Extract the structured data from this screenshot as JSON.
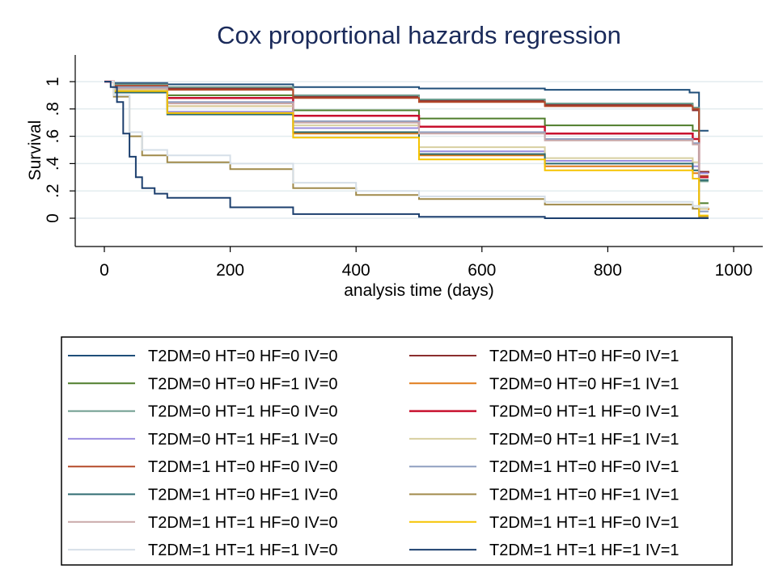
{
  "chart_data": {
    "type": "line",
    "step": true,
    "title": "Cox proportional hazards regression",
    "xlabel": "analysis time (days)",
    "ylabel": "Survival",
    "xlim": [
      0,
      1000
    ],
    "ylim": [
      0,
      1
    ],
    "xticks": [
      0,
      200,
      400,
      600,
      800,
      1000
    ],
    "yticks": [
      0,
      0.2,
      0.4,
      0.6,
      0.8,
      1
    ],
    "ytick_labels": [
      "0",
      ".2",
      ".4",
      ".6",
      ".8",
      "1"
    ],
    "grid": true,
    "legend_position": "bottom",
    "legend_columns": 2,
    "series": [
      {
        "name": "T2DM=0 HT=0 HF=0 IV=0",
        "color": "#1f4e79",
        "width": 2,
        "points": [
          [
            0,
            1
          ],
          [
            15,
            0.99
          ],
          [
            100,
            0.98
          ],
          [
            300,
            0.96
          ],
          [
            500,
            0.95
          ],
          [
            700,
            0.94
          ],
          [
            930,
            0.92
          ],
          [
            945,
            0.64
          ],
          [
            960,
            0.64
          ]
        ]
      },
      {
        "name": "T2DM=0 HT=0 HF=0 IV=1",
        "color": "#8b2e2e",
        "width": 2,
        "points": [
          [
            0,
            1
          ],
          [
            15,
            0.98
          ],
          [
            100,
            0.95
          ],
          [
            300,
            0.89
          ],
          [
            500,
            0.86
          ],
          [
            700,
            0.83
          ],
          [
            935,
            0.79
          ],
          [
            945,
            0.34
          ],
          [
            960,
            0.33
          ]
        ]
      },
      {
        "name": "T2DM=0 HT=0 HF=1 IV=0",
        "color": "#4f7d2b",
        "width": 2,
        "points": [
          [
            0,
            1
          ],
          [
            15,
            0.96
          ],
          [
            100,
            0.9
          ],
          [
            300,
            0.79
          ],
          [
            500,
            0.73
          ],
          [
            700,
            0.68
          ],
          [
            935,
            0.64
          ],
          [
            945,
            0.11
          ],
          [
            960,
            0.11
          ]
        ]
      },
      {
        "name": "T2DM=0 HT=0 HF=1 IV=1",
        "color": "#e07b1a",
        "width": 2,
        "points": [
          [
            0,
            1
          ],
          [
            15,
            0.94
          ],
          [
            100,
            0.82
          ],
          [
            300,
            0.62
          ],
          [
            500,
            0.46
          ],
          [
            700,
            0.38
          ],
          [
            935,
            0.33
          ],
          [
            945,
            0.07
          ],
          [
            960,
            0.06
          ]
        ]
      },
      {
        "name": "T2DM=0 HT=1 HF=0 IV=0",
        "color": "#6d9c8e",
        "width": 2,
        "points": [
          [
            0,
            1
          ],
          [
            15,
            0.98
          ],
          [
            100,
            0.96
          ],
          [
            300,
            0.9
          ],
          [
            500,
            0.87
          ],
          [
            700,
            0.84
          ],
          [
            935,
            0.81
          ],
          [
            945,
            0.27
          ],
          [
            960,
            0.27
          ]
        ]
      },
      {
        "name": "T2DM=0 HT=1 HF=0 IV=1",
        "color": "#c8102e",
        "width": 2.5,
        "points": [
          [
            0,
            1
          ],
          [
            15,
            0.96
          ],
          [
            100,
            0.88
          ],
          [
            300,
            0.75
          ],
          [
            500,
            0.67
          ],
          [
            700,
            0.62
          ],
          [
            935,
            0.58
          ],
          [
            945,
            0.3
          ],
          [
            960,
            0.3
          ]
        ]
      },
      {
        "name": "T2DM=0 HT=1 HF=1 IV=0",
        "color": "#9b8ee0",
        "width": 2,
        "points": [
          [
            0,
            1
          ],
          [
            15,
            0.93
          ],
          [
            100,
            0.78
          ],
          [
            300,
            0.66
          ],
          [
            500,
            0.49
          ],
          [
            700,
            0.42
          ],
          [
            935,
            0.38
          ],
          [
            945,
            0.33
          ],
          [
            960,
            0.33
          ]
        ]
      },
      {
        "name": "T2DM=0 HT=1 HF=1 IV=1",
        "color": "#d8cfa0",
        "width": 2,
        "points": [
          [
            0,
            1
          ],
          [
            15,
            0.94
          ],
          [
            100,
            0.82
          ],
          [
            300,
            0.68
          ],
          [
            500,
            0.52
          ],
          [
            700,
            0.44
          ],
          [
            935,
            0.41
          ],
          [
            945,
            0.07
          ],
          [
            960,
            0.07
          ]
        ]
      },
      {
        "name": "T2DM=1 HT=0 HF=0 IV=0",
        "color": "#b54a2a",
        "width": 2,
        "points": [
          [
            0,
            1
          ],
          [
            15,
            0.97
          ],
          [
            100,
            0.94
          ],
          [
            300,
            0.88
          ],
          [
            500,
            0.85
          ],
          [
            700,
            0.82
          ],
          [
            935,
            0.8
          ],
          [
            945,
            0.31
          ],
          [
            960,
            0.31
          ]
        ]
      },
      {
        "name": "T2DM=1 HT=0 HF=0 IV=1",
        "color": "#8f9fc0",
        "width": 2,
        "points": [
          [
            0,
            1
          ],
          [
            15,
            0.96
          ],
          [
            100,
            0.85
          ],
          [
            300,
            0.71
          ],
          [
            500,
            0.63
          ],
          [
            700,
            0.58
          ],
          [
            935,
            0.55
          ],
          [
            945,
            0.05
          ],
          [
            960,
            0.05
          ]
        ]
      },
      {
        "name": "T2DM=1 HT=0 HF=1 IV=0",
        "color": "#2e6b70",
        "width": 2,
        "points": [
          [
            0,
            1
          ],
          [
            15,
            0.92
          ],
          [
            100,
            0.76
          ],
          [
            300,
            0.63
          ],
          [
            500,
            0.47
          ],
          [
            700,
            0.4
          ],
          [
            935,
            0.35
          ],
          [
            945,
            0.28
          ],
          [
            960,
            0.28
          ]
        ]
      },
      {
        "name": "T2DM=1 HT=0 HF=1 IV=1",
        "color": "#a08a4a",
        "width": 2,
        "points": [
          [
            0,
            1
          ],
          [
            15,
            0.89
          ],
          [
            40,
            0.6
          ],
          [
            60,
            0.46
          ],
          [
            100,
            0.41
          ],
          [
            200,
            0.36
          ],
          [
            300,
            0.22
          ],
          [
            400,
            0.17
          ],
          [
            500,
            0.14
          ],
          [
            700,
            0.1
          ],
          [
            935,
            0.07
          ],
          [
            945,
            0.01
          ],
          [
            960,
            0.01
          ]
        ]
      },
      {
        "name": "T2DM=1 HT=1 HF=0 IV=0",
        "color": "#c9a8a8",
        "width": 2,
        "points": [
          [
            0,
            1
          ],
          [
            15,
            0.95
          ],
          [
            100,
            0.84
          ],
          [
            300,
            0.7
          ],
          [
            500,
            0.62
          ],
          [
            700,
            0.57
          ],
          [
            935,
            0.54
          ],
          [
            945,
            0.08
          ],
          [
            960,
            0.08
          ]
        ]
      },
      {
        "name": "T2DM=1 HT=1 HF=0 IV=1",
        "color": "#f5c300",
        "width": 2,
        "points": [
          [
            0,
            1
          ],
          [
            15,
            0.93
          ],
          [
            100,
            0.77
          ],
          [
            300,
            0.59
          ],
          [
            500,
            0.43
          ],
          [
            700,
            0.35
          ],
          [
            935,
            0.29
          ],
          [
            945,
            0.02
          ],
          [
            960,
            0.02
          ]
        ]
      },
      {
        "name": "T2DM=1 HT=1 HF=1 IV=0",
        "color": "#d6dfe8",
        "width": 2,
        "points": [
          [
            0,
            1
          ],
          [
            15,
            0.9
          ],
          [
            40,
            0.63
          ],
          [
            60,
            0.5
          ],
          [
            100,
            0.46
          ],
          [
            200,
            0.4
          ],
          [
            300,
            0.26
          ],
          [
            400,
            0.2
          ],
          [
            500,
            0.16
          ],
          [
            700,
            0.12
          ],
          [
            935,
            0.09
          ],
          [
            945,
            0.08
          ],
          [
            960,
            0.08
          ]
        ]
      },
      {
        "name": "T2DM=1 HT=1 HF=1 IV=1",
        "color": "#1c3f6e",
        "width": 2,
        "points": [
          [
            0,
            1
          ],
          [
            10,
            0.96
          ],
          [
            20,
            0.85
          ],
          [
            30,
            0.62
          ],
          [
            40,
            0.45
          ],
          [
            50,
            0.3
          ],
          [
            60,
            0.22
          ],
          [
            80,
            0.18
          ],
          [
            100,
            0.15
          ],
          [
            200,
            0.08
          ],
          [
            300,
            0.03
          ],
          [
            500,
            0.01
          ],
          [
            700,
            0.0
          ],
          [
            960,
            0.0
          ]
        ]
      }
    ]
  }
}
